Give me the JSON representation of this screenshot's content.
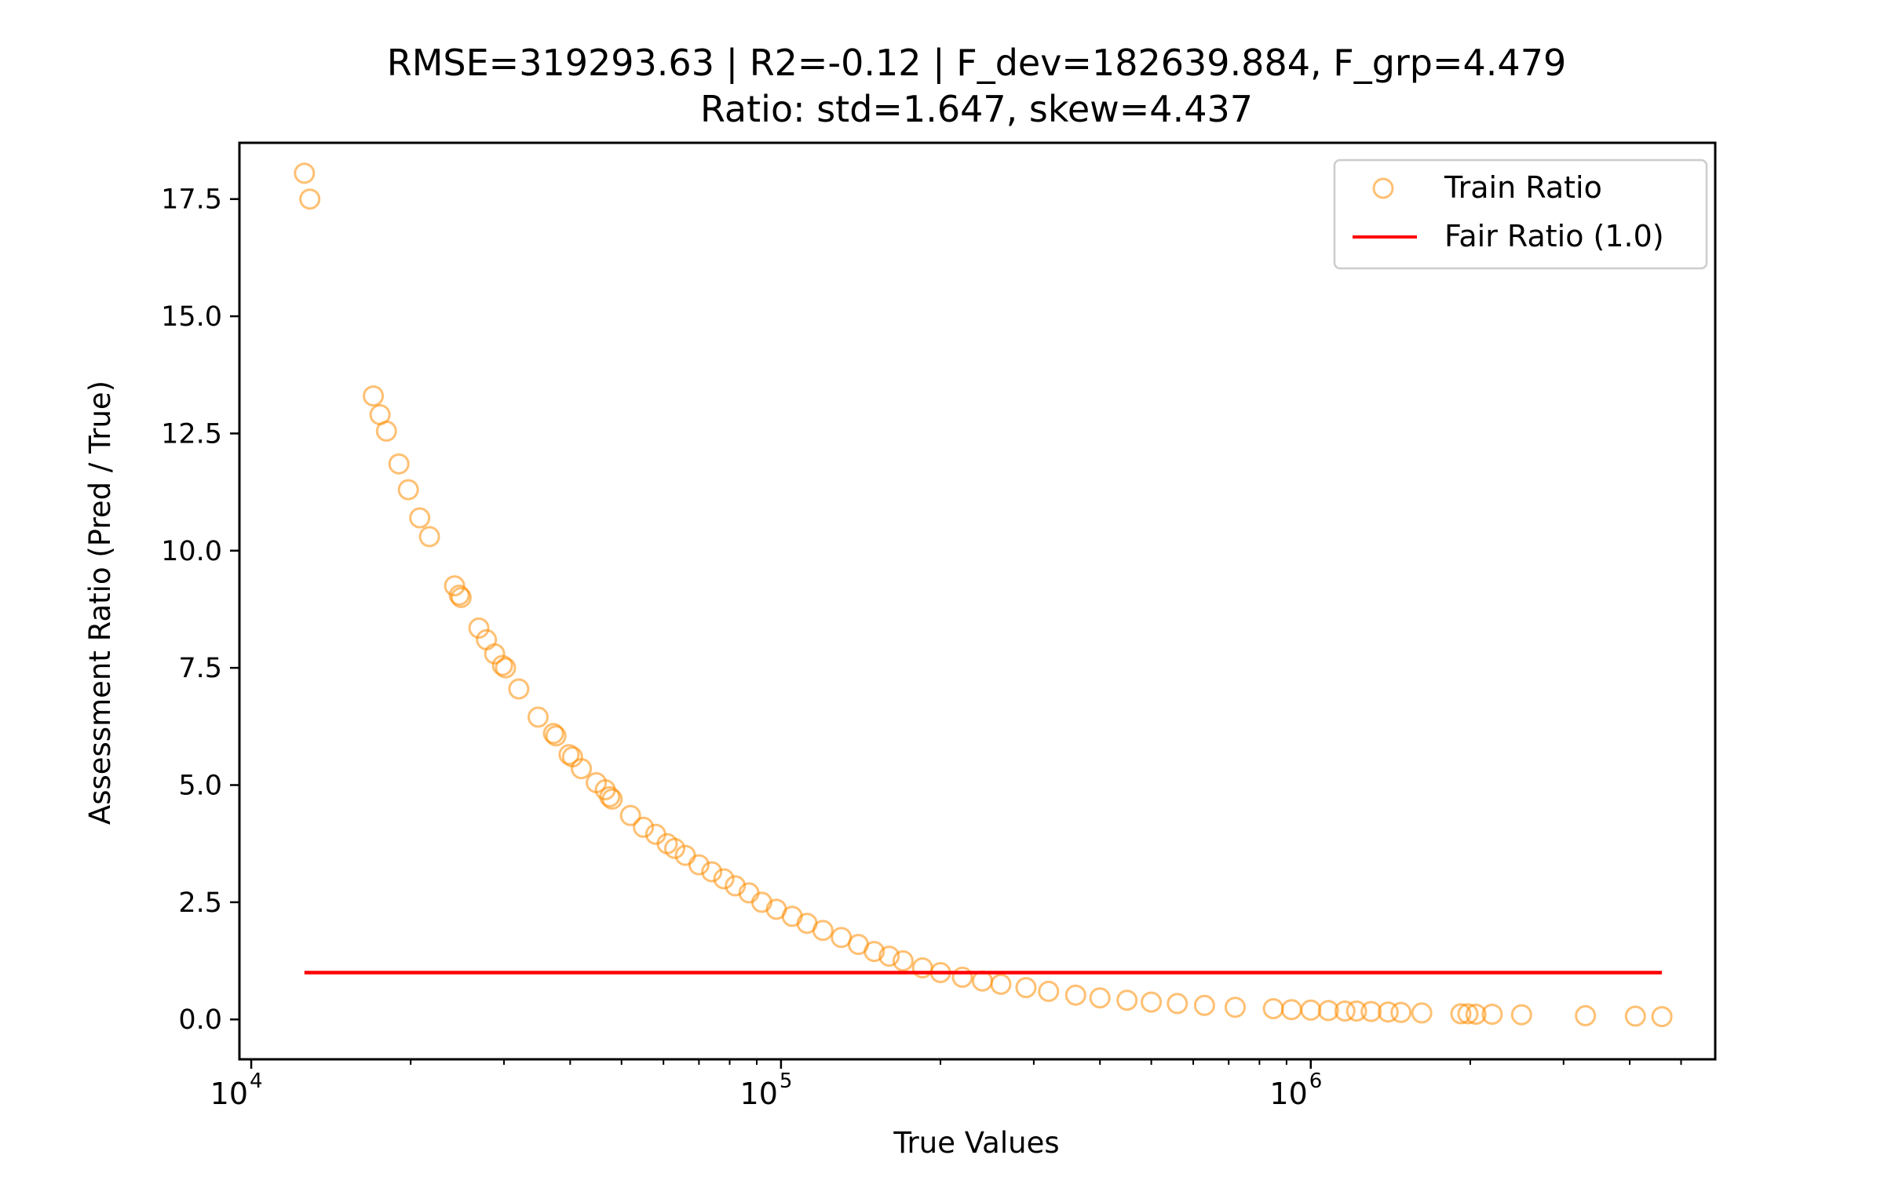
{
  "chart_data": {
    "type": "scatter",
    "title": "RMSE=319293.63 | R2=-0.12 | F_dev=182639.884, F_grp=4.479",
    "subtitle": "Ratio: std=1.647, skew=4.437",
    "xlabel": "True Values",
    "ylabel": "Assessment Ratio (Pred / True)",
    "x_scale": "log",
    "xlim": [
      9500,
      5800000
    ],
    "ylim": [
      -0.85,
      18.7
    ],
    "x_ticks": [
      {
        "value": 10000,
        "base": "10",
        "exp": "4"
      },
      {
        "value": 100000,
        "base": "10",
        "exp": "5"
      },
      {
        "value": 1000000,
        "base": "10",
        "exp": "6"
      }
    ],
    "y_ticks": [
      {
        "value": 0.0,
        "label": "0.0"
      },
      {
        "value": 2.5,
        "label": "2.5"
      },
      {
        "value": 5.0,
        "label": "5.0"
      },
      {
        "value": 7.5,
        "label": "7.5"
      },
      {
        "value": 10.0,
        "label": "10.0"
      },
      {
        "value": 12.5,
        "label": "12.5"
      },
      {
        "value": 15.0,
        "label": "15.0"
      },
      {
        "value": 17.5,
        "label": "17.5"
      }
    ],
    "grid": false,
    "legend": {
      "position": "top-right",
      "entries": [
        "Train Ratio",
        "Fair Ratio (1.0)"
      ]
    },
    "colors": {
      "train_ratio": "#ff8c00",
      "fair_ratio": "#ff0000"
    },
    "series": [
      {
        "name": "Train Ratio",
        "type": "scatter",
        "points": [
          [
            12600,
            18.05
          ],
          [
            12900,
            17.5
          ],
          [
            17000,
            13.3
          ],
          [
            17500,
            12.9
          ],
          [
            18000,
            12.55
          ],
          [
            19000,
            11.85
          ],
          [
            19800,
            11.3
          ],
          [
            20800,
            10.7
          ],
          [
            21700,
            10.3
          ],
          [
            24200,
            9.25
          ],
          [
            24700,
            9.05
          ],
          [
            24900,
            9.0
          ],
          [
            26900,
            8.35
          ],
          [
            27800,
            8.1
          ],
          [
            28800,
            7.8
          ],
          [
            29800,
            7.55
          ],
          [
            30200,
            7.5
          ],
          [
            32000,
            7.05
          ],
          [
            34800,
            6.45
          ],
          [
            37200,
            6.1
          ],
          [
            37600,
            6.05
          ],
          [
            39800,
            5.65
          ],
          [
            40400,
            5.6
          ],
          [
            42000,
            5.35
          ],
          [
            44800,
            5.05
          ],
          [
            46600,
            4.9
          ],
          [
            47500,
            4.75
          ],
          [
            48000,
            4.7
          ],
          [
            52000,
            4.35
          ],
          [
            55000,
            4.1
          ],
          [
            58000,
            3.95
          ],
          [
            61000,
            3.75
          ],
          [
            63000,
            3.65
          ],
          [
            66000,
            3.5
          ],
          [
            70000,
            3.3
          ],
          [
            74000,
            3.15
          ],
          [
            78000,
            3.0
          ],
          [
            82000,
            2.85
          ],
          [
            87000,
            2.7
          ],
          [
            92000,
            2.5
          ],
          [
            98000,
            2.35
          ],
          [
            105000,
            2.2
          ],
          [
            112000,
            2.05
          ],
          [
            120000,
            1.9
          ],
          [
            130000,
            1.75
          ],
          [
            140000,
            1.6
          ],
          [
            150000,
            1.45
          ],
          [
            160000,
            1.35
          ],
          [
            170000,
            1.25
          ],
          [
            185000,
            1.1
          ],
          [
            200000,
            1.0
          ],
          [
            220000,
            0.9
          ],
          [
            240000,
            0.82
          ],
          [
            260000,
            0.75
          ],
          [
            290000,
            0.68
          ],
          [
            320000,
            0.6
          ],
          [
            360000,
            0.52
          ],
          [
            400000,
            0.46
          ],
          [
            450000,
            0.41
          ],
          [
            500000,
            0.37
          ],
          [
            560000,
            0.34
          ],
          [
            630000,
            0.3
          ],
          [
            720000,
            0.26
          ],
          [
            850000,
            0.23
          ],
          [
            920000,
            0.21
          ],
          [
            1000000,
            0.2
          ],
          [
            1080000,
            0.19
          ],
          [
            1160000,
            0.18
          ],
          [
            1220000,
            0.18
          ],
          [
            1300000,
            0.17
          ],
          [
            1400000,
            0.16
          ],
          [
            1480000,
            0.15
          ],
          [
            1620000,
            0.14
          ],
          [
            1920000,
            0.12
          ],
          [
            1980000,
            0.12
          ],
          [
            2050000,
            0.11
          ],
          [
            2200000,
            0.11
          ],
          [
            2500000,
            0.1
          ],
          [
            3300000,
            0.08
          ],
          [
            4100000,
            0.07
          ],
          [
            4600000,
            0.06
          ]
        ]
      },
      {
        "name": "Fair Ratio (1.0)",
        "type": "line",
        "x": [
          12600,
          4600000
        ],
        "y": [
          1.0,
          1.0
        ]
      }
    ]
  }
}
